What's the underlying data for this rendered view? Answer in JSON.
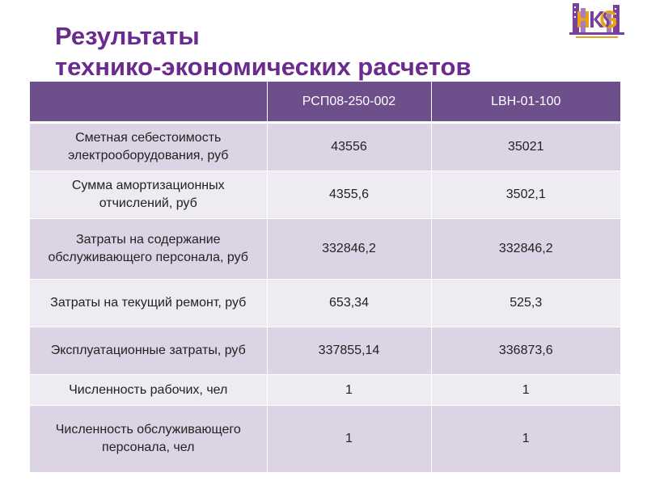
{
  "title": {
    "line1": "Результаты",
    "line2": "технико-экономических расчетов"
  },
  "logo": {
    "icon": "hkg-logo-icon",
    "colors": {
      "primary": "#7a3f98",
      "accent": "#e8a018"
    }
  },
  "table": {
    "columns": [
      "",
      "РСП08-250-002",
      "LBH-01-100"
    ],
    "rows": [
      {
        "label": "Сметная себестоимость электрооборудования, руб",
        "values": [
          "43556",
          "35021"
        ]
      },
      {
        "label": "Сумма амортизационных отчислений, руб",
        "values": [
          "4355,6",
          "3502,1"
        ]
      },
      {
        "label": "Затраты на содержание обслуживающего персонала, руб",
        "values": [
          "332846,2",
          "332846,2"
        ]
      },
      {
        "label": "Затраты на текущий ремонт, руб",
        "values": [
          "653,34",
          "525,3"
        ]
      },
      {
        "label": "Эксплуатационные затраты, руб",
        "values": [
          "337855,14",
          "336873,6"
        ]
      },
      {
        "label": "Численность рабочих, чел",
        "values": [
          "1",
          "1"
        ]
      },
      {
        "label": "Численность обслуживающего персонала, чел",
        "values": [
          "1",
          "1"
        ]
      }
    ]
  },
  "colors": {
    "title": "#6b2a8e",
    "header_bg": "#6c4f8b",
    "row_dark": "#dcd4e4",
    "row_light": "#efebf3"
  }
}
